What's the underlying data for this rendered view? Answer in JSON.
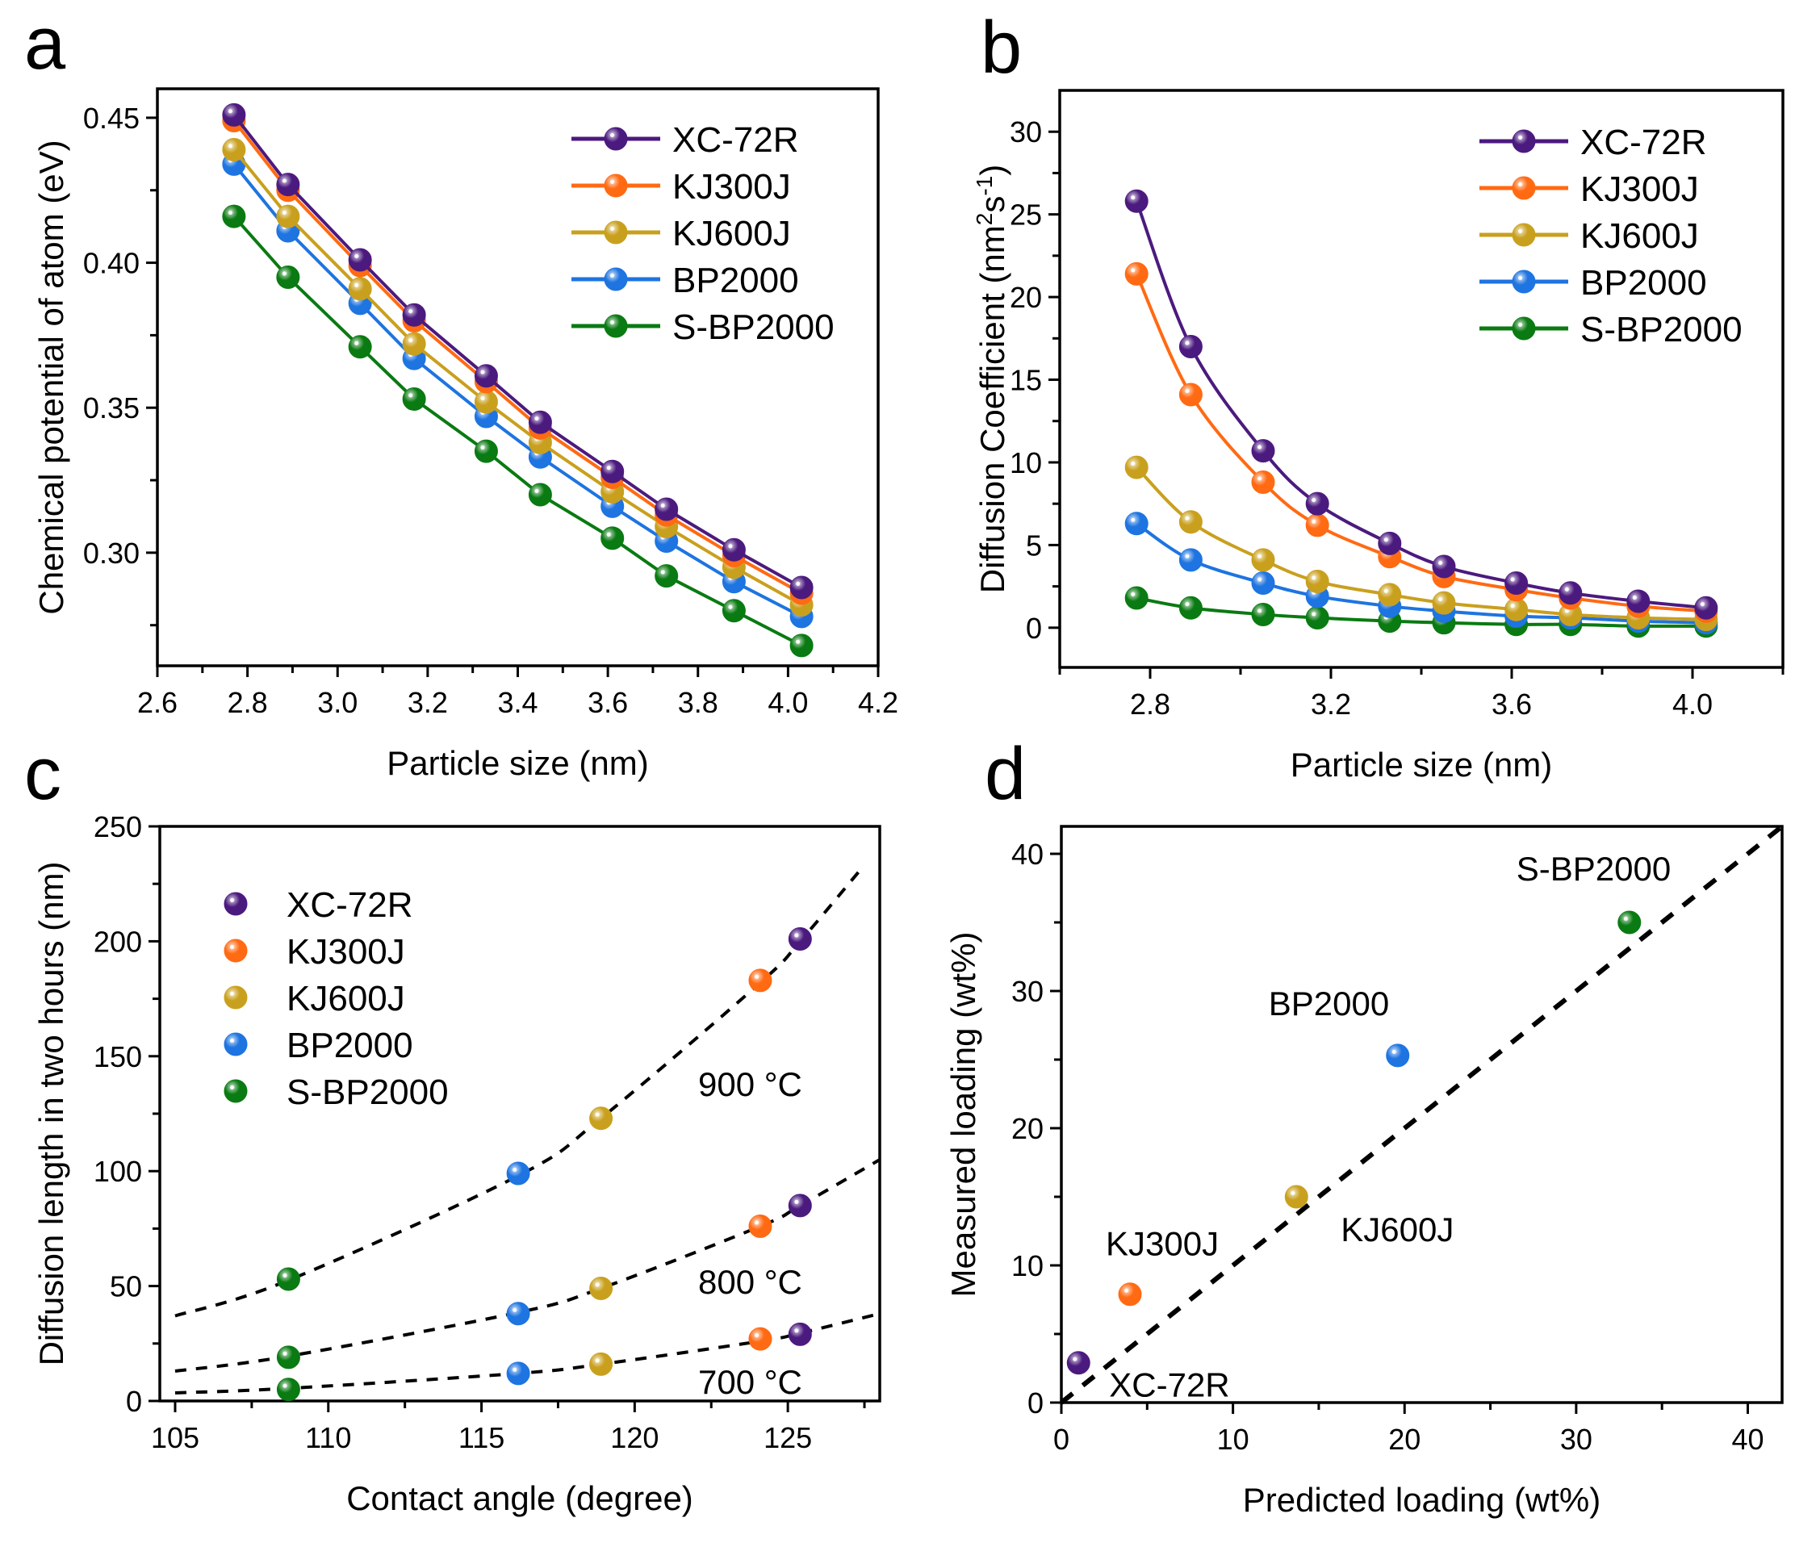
{
  "figure": {
    "panels": [
      "a",
      "b",
      "c",
      "d"
    ]
  },
  "colors": {
    "XC-72R": "#4B1A7E",
    "KJ300J": "#FF6A13",
    "KJ600J": "#C9A01E",
    "BP2000": "#1E74E0",
    "S-BP2000": "#0A7A12"
  },
  "chart_data": [
    {
      "panel": "a",
      "type": "line",
      "title": "",
      "xlabel": "Particle size (nm)",
      "ylabel": "Chemical potential of atom (eV)",
      "xlim": [
        2.6,
        4.2
      ],
      "ylim": [
        0.261,
        0.46
      ],
      "xticks": [
        "2.6",
        "2.8",
        "3.0",
        "3.2",
        "3.4",
        "3.6",
        "3.8",
        "4.0",
        "4.2"
      ],
      "xtick_values": [
        2.6,
        2.8,
        3.0,
        3.2,
        3.4,
        3.6,
        3.8,
        4.0,
        4.2
      ],
      "yticks": [
        "0.30",
        "0.35",
        "0.40",
        "0.45"
      ],
      "ytick_values": [
        0.3,
        0.35,
        0.4,
        0.45
      ],
      "grid": false,
      "legend": "top-right",
      "x": [
        2.77,
        2.89,
        3.05,
        3.17,
        3.33,
        3.45,
        3.61,
        3.73,
        3.88,
        4.03
      ],
      "series": [
        {
          "name": "XC-72R",
          "values": [
            0.451,
            0.427,
            0.401,
            0.382,
            0.361,
            0.345,
            0.328,
            0.315,
            0.301,
            0.288
          ]
        },
        {
          "name": "KJ300J",
          "values": [
            0.449,
            0.425,
            0.399,
            0.38,
            0.359,
            0.343,
            0.326,
            0.313,
            0.299,
            0.286
          ]
        },
        {
          "name": "KJ600J",
          "values": [
            0.439,
            0.416,
            0.391,
            0.372,
            0.352,
            0.338,
            0.321,
            0.309,
            0.295,
            0.282
          ]
        },
        {
          "name": "BP2000",
          "values": [
            0.434,
            0.411,
            0.386,
            0.367,
            0.347,
            0.333,
            0.316,
            0.304,
            0.29,
            0.278
          ]
        },
        {
          "name": "S-BP2000",
          "values": [
            0.416,
            0.395,
            0.371,
            0.353,
            0.335,
            0.32,
            0.305,
            0.292,
            0.28,
            0.268
          ]
        }
      ]
    },
    {
      "panel": "b",
      "type": "line",
      "title": "",
      "xlabel": "Particle size (nm)",
      "ylabel": "Diffusion Coefficient (nm²s⁻¹)",
      "ylabel_parts": [
        "Diffusion Coefficient (nm",
        "2",
        "s",
        "-1",
        ")"
      ],
      "xlim": [
        2.6,
        4.2
      ],
      "ylim": [
        -2.4,
        32.5
      ],
      "xticks": [
        "2.8",
        "3.2",
        "3.6",
        "4.0"
      ],
      "xtick_values": [
        2.8,
        3.2,
        3.6,
        4.0
      ],
      "yticks": [
        "0",
        "5",
        "10",
        "15",
        "20",
        "25",
        "30"
      ],
      "ytick_values": [
        0,
        5,
        10,
        15,
        20,
        25,
        30
      ],
      "grid": false,
      "legend": "top-right",
      "x": [
        2.77,
        2.89,
        3.05,
        3.17,
        3.33,
        3.45,
        3.61,
        3.73,
        3.88,
        4.03
      ],
      "series": [
        {
          "name": "XC-72R",
          "values": [
            25.8,
            17.0,
            10.7,
            7.5,
            5.1,
            3.7,
            2.7,
            2.1,
            1.6,
            1.2
          ]
        },
        {
          "name": "KJ300J",
          "values": [
            21.4,
            14.1,
            8.8,
            6.2,
            4.3,
            3.1,
            2.3,
            1.8,
            1.3,
            1.0
          ]
        },
        {
          "name": "KJ600J",
          "values": [
            9.7,
            6.4,
            4.1,
            2.8,
            2.0,
            1.5,
            1.1,
            0.8,
            0.6,
            0.5
          ]
        },
        {
          "name": "BP2000",
          "values": [
            6.3,
            4.1,
            2.7,
            1.9,
            1.3,
            1.0,
            0.7,
            0.6,
            0.4,
            0.3
          ]
        },
        {
          "name": "S-BP2000",
          "values": [
            1.8,
            1.2,
            0.8,
            0.6,
            0.4,
            0.3,
            0.2,
            0.2,
            0.1,
            0.1
          ]
        }
      ]
    },
    {
      "panel": "c",
      "type": "scatter",
      "title": "",
      "xlabel": "Contact angle (degree)",
      "ylabel": "Diffusion length in two hours (nm)",
      "xlim": [
        104.5,
        128
      ],
      "ylim": [
        0,
        250
      ],
      "xticks": [
        "105",
        "110",
        "115",
        "120",
        "125"
      ],
      "xtick_values": [
        105,
        110,
        115,
        120,
        125
      ],
      "yticks": [
        "0",
        "50",
        "100",
        "150",
        "200",
        "250"
      ],
      "ytick_values": [
        0,
        50,
        100,
        150,
        200,
        250
      ],
      "grid": false,
      "legend": "top-left",
      "points": [
        {
          "name": "XC-72R",
          "x": 125.4,
          "y": [
            29,
            85,
            201
          ]
        },
        {
          "name": "KJ300J",
          "x": 124.1,
          "y": [
            27,
            76,
            183
          ]
        },
        {
          "name": "KJ600J",
          "x": 118.9,
          "y": [
            16,
            49,
            123
          ]
        },
        {
          "name": "BP2000",
          "x": 116.2,
          "y": [
            12,
            38,
            99
          ]
        },
        {
          "name": "S-BP2000",
          "x": 108.7,
          "y": [
            5,
            19,
            53
          ]
        }
      ],
      "temperatures": [
        "700 °C",
        "800 °C",
        "900 °C"
      ],
      "fits": [
        {
          "label": "700 °C",
          "x": [
            105,
            108.7,
            116.2,
            118.9,
            124.1,
            125.4,
            128
          ],
          "y": [
            3.5,
            5.5,
            12,
            16,
            26,
            29.5,
            38
          ]
        },
        {
          "label": "800 °C",
          "x": [
            105,
            108.7,
            116.2,
            118.9,
            124.1,
            125.4,
            128
          ],
          "y": [
            13,
            19.5,
            38.5,
            49,
            76,
            85,
            105
          ]
        },
        {
          "label": "900 °C",
          "x": [
            105,
            108.7,
            116.2,
            118.9,
            124.1,
            125.4,
            127.3
          ],
          "y": [
            37,
            52.5,
            98,
            123,
            182,
            200,
            230
          ]
        }
      ]
    },
    {
      "panel": "d",
      "type": "scatter",
      "title": "",
      "xlabel": "Predicted loading (wt%)",
      "ylabel": "Measured loading (wt%)",
      "xlim": [
        0,
        42
      ],
      "ylim": [
        0,
        42
      ],
      "xticks": [
        "0",
        "10",
        "20",
        "30",
        "40"
      ],
      "xtick_values": [
        0,
        10,
        20,
        30,
        40
      ],
      "yticks": [
        "0",
        "10",
        "20",
        "30",
        "40"
      ],
      "ytick_values": [
        0,
        10,
        20,
        30,
        40
      ],
      "grid": false,
      "legend": "none",
      "reference_line": {
        "style": "dashed",
        "x": [
          0,
          42
        ],
        "y": [
          0,
          42
        ]
      },
      "points": [
        {
          "name": "XC-72R",
          "x": 1.0,
          "y": 2.9,
          "label_pos": "right-below"
        },
        {
          "name": "KJ300J",
          "x": 4.0,
          "y": 7.9,
          "label_pos": "above"
        },
        {
          "name": "KJ600J",
          "x": 13.7,
          "y": 15.0,
          "label_pos": "right-below"
        },
        {
          "name": "BP2000",
          "x": 19.6,
          "y": 25.3,
          "label_pos": "above-left"
        },
        {
          "name": "S-BP2000",
          "x": 33.1,
          "y": 35.0,
          "label_pos": "above-left"
        }
      ]
    }
  ]
}
